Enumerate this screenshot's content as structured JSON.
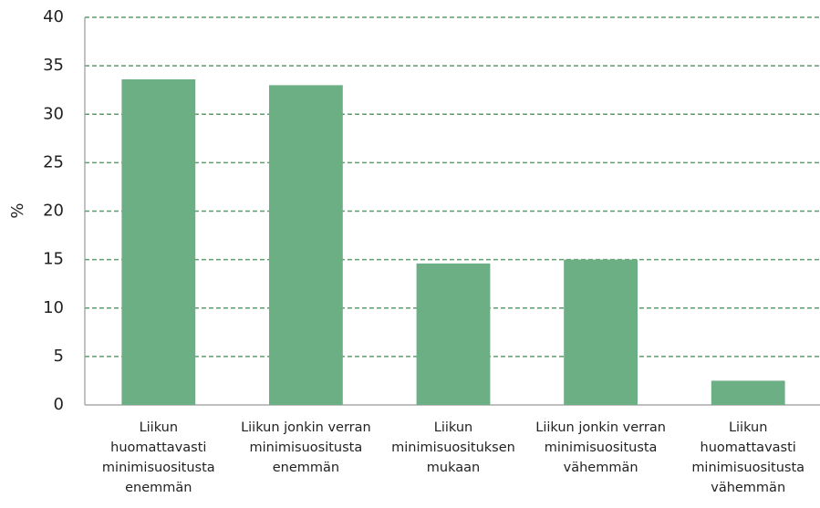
{
  "chart_data": {
    "type": "bar",
    "y_label": "%",
    "categories": [
      "Liikun huomattavasti minimisuositusta enemmän",
      "Liikun jonkin verran minimisuositusta enemmän",
      "Liikun minimisuosituksen mukaan",
      "Liikun jonkin verran minimisuositusta vähemmän",
      "Liikun huomattavasti minimisuositusta vähemmän"
    ],
    "values": [
      33.6,
      33.0,
      14.6,
      15.0,
      2.5
    ],
    "color": "#6daf84",
    "ylim": [
      0,
      40
    ],
    "yticks": [
      0,
      5,
      10,
      15,
      20,
      25,
      30,
      35,
      40
    ],
    "grid": true,
    "grid_color": "#5aa06a"
  }
}
